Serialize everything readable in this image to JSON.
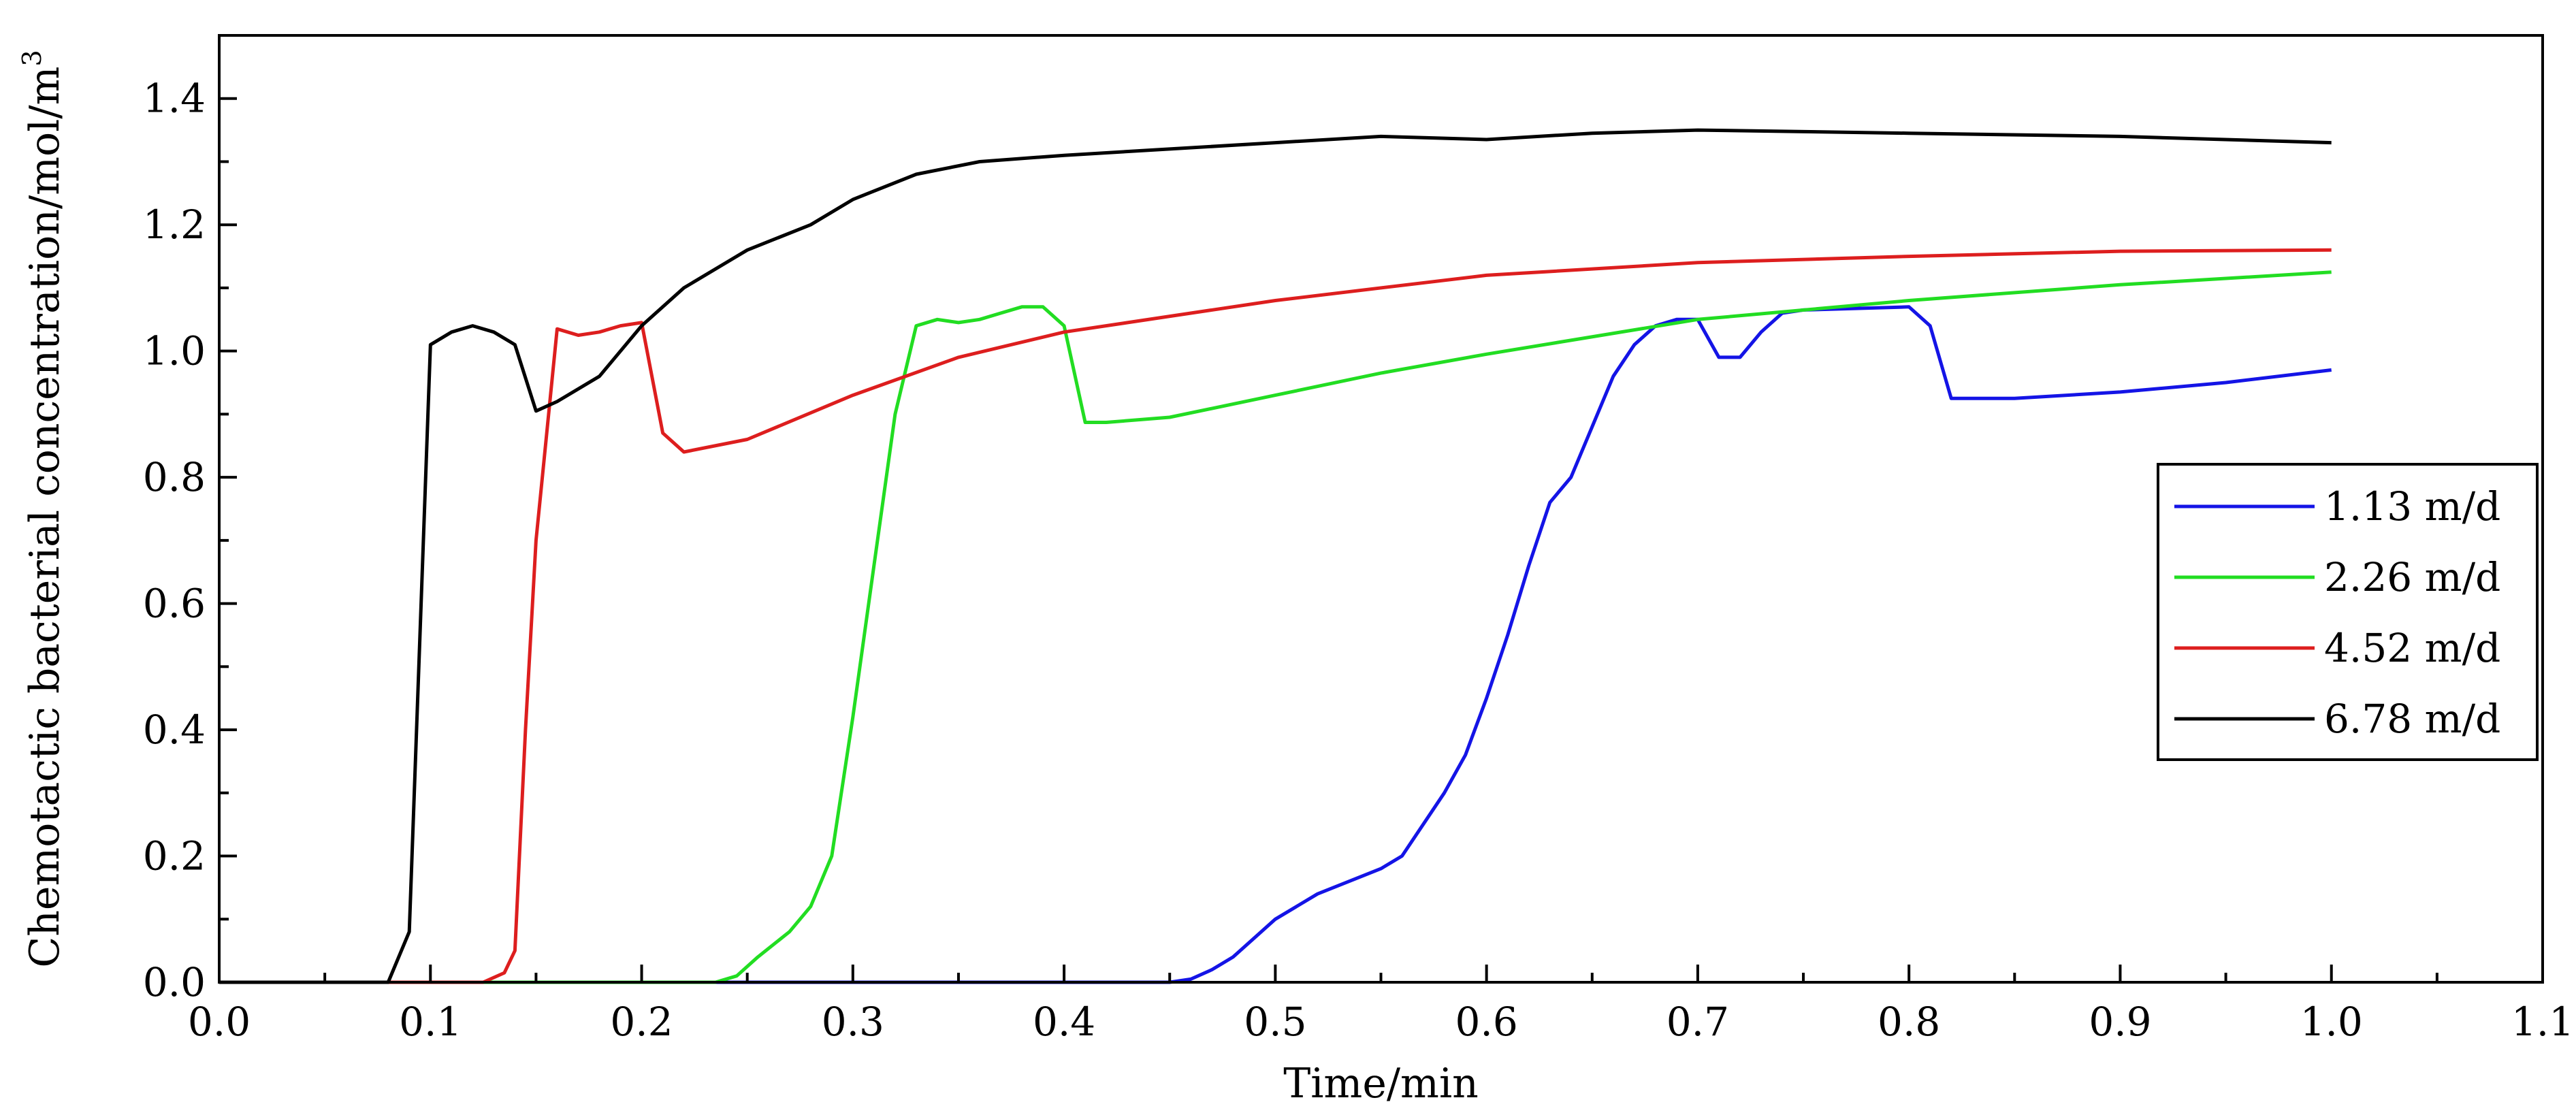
{
  "chart_data": {
    "type": "line",
    "title": "",
    "xlabel": "Time/min",
    "ylabel": "Chemotactic bacterial concentration/mol/m",
    "ylabel_superscript": "3",
    "xlim": [
      0,
      1.1
    ],
    "ylim": [
      0,
      1.5
    ],
    "xticks": [
      0,
      0.1,
      0.2,
      0.3,
      0.4,
      0.5,
      0.6,
      0.7,
      0.8,
      0.9,
      1.0,
      1.1
    ],
    "xtick_labels": [
      "0.0",
      "0.1",
      "0.2",
      "0.3",
      "0.4",
      "0.5",
      "0.6",
      "0.7",
      "0.8",
      "0.9",
      "1.0",
      "1.1"
    ],
    "yticks": [
      0,
      0.2,
      0.4,
      0.6,
      0.8,
      1.0,
      1.2,
      1.4
    ],
    "ytick_labels": [
      "0.0",
      "0.2",
      "0.4",
      "0.6",
      "0.8",
      "1.0",
      "1.2",
      "1.4"
    ],
    "grid": false,
    "legend_position": "right",
    "series": [
      {
        "name": "1.13 m/d",
        "color": "#1414e6",
        "points": [
          [
            0,
            0
          ],
          [
            0.45,
            0
          ],
          [
            0.46,
            0.005
          ],
          [
            0.47,
            0.02
          ],
          [
            0.48,
            0.04
          ],
          [
            0.49,
            0.07
          ],
          [
            0.5,
            0.1
          ],
          [
            0.52,
            0.14
          ],
          [
            0.55,
            0.18
          ],
          [
            0.56,
            0.2
          ],
          [
            0.58,
            0.3
          ],
          [
            0.59,
            0.36
          ],
          [
            0.6,
            0.45
          ],
          [
            0.61,
            0.55
          ],
          [
            0.62,
            0.66
          ],
          [
            0.63,
            0.76
          ],
          [
            0.64,
            0.8
          ],
          [
            0.65,
            0.88
          ],
          [
            0.66,
            0.96
          ],
          [
            0.67,
            1.01
          ],
          [
            0.68,
            1.04
          ],
          [
            0.69,
            1.05
          ],
          [
            0.7,
            1.05
          ],
          [
            0.71,
            0.99
          ],
          [
            0.72,
            0.99
          ],
          [
            0.73,
            1.03
          ],
          [
            0.74,
            1.06
          ],
          [
            0.75,
            1.065
          ],
          [
            0.8,
            1.07
          ],
          [
            0.81,
            1.04
          ],
          [
            0.82,
            0.925
          ],
          [
            0.85,
            0.925
          ],
          [
            0.9,
            0.935
          ],
          [
            0.95,
            0.95
          ],
          [
            1.0,
            0.97
          ]
        ]
      },
      {
        "name": "2.26 m/d",
        "color": "#22dd22",
        "points": [
          [
            0,
            0
          ],
          [
            0.235,
            0
          ],
          [
            0.245,
            0.01
          ],
          [
            0.255,
            0.04
          ],
          [
            0.27,
            0.08
          ],
          [
            0.28,
            0.12
          ],
          [
            0.29,
            0.2
          ],
          [
            0.3,
            0.42
          ],
          [
            0.31,
            0.66
          ],
          [
            0.32,
            0.9
          ],
          [
            0.33,
            1.04
          ],
          [
            0.34,
            1.05
          ],
          [
            0.35,
            1.045
          ],
          [
            0.36,
            1.05
          ],
          [
            0.37,
            1.06
          ],
          [
            0.38,
            1.07
          ],
          [
            0.39,
            1.07
          ],
          [
            0.4,
            1.04
          ],
          [
            0.41,
            0.887
          ],
          [
            0.42,
            0.887
          ],
          [
            0.45,
            0.895
          ],
          [
            0.5,
            0.93
          ],
          [
            0.55,
            0.965
          ],
          [
            0.6,
            0.995
          ],
          [
            0.7,
            1.05
          ],
          [
            0.8,
            1.08
          ],
          [
            0.9,
            1.105
          ],
          [
            1.0,
            1.125
          ]
        ]
      },
      {
        "name": "4.52 m/d",
        "color": "#dd1e1e",
        "points": [
          [
            0,
            0
          ],
          [
            0.125,
            0
          ],
          [
            0.135,
            0.015
          ],
          [
            0.14,
            0.05
          ],
          [
            0.145,
            0.4
          ],
          [
            0.15,
            0.7
          ],
          [
            0.16,
            1.035
          ],
          [
            0.17,
            1.025
          ],
          [
            0.18,
            1.03
          ],
          [
            0.19,
            1.04
          ],
          [
            0.2,
            1.045
          ],
          [
            0.21,
            0.87
          ],
          [
            0.22,
            0.84
          ],
          [
            0.25,
            0.86
          ],
          [
            0.3,
            0.93
          ],
          [
            0.35,
            0.99
          ],
          [
            0.4,
            1.03
          ],
          [
            0.5,
            1.08
          ],
          [
            0.6,
            1.12
          ],
          [
            0.7,
            1.14
          ],
          [
            0.8,
            1.15
          ],
          [
            0.9,
            1.158
          ],
          [
            1.0,
            1.16
          ]
        ]
      },
      {
        "name": "6.78 m/d",
        "color": "#000000",
        "points": [
          [
            0,
            0
          ],
          [
            0.08,
            0
          ],
          [
            0.09,
            0.08
          ],
          [
            0.1,
            1.01
          ],
          [
            0.11,
            1.03
          ],
          [
            0.12,
            1.04
          ],
          [
            0.13,
            1.03
          ],
          [
            0.14,
            1.01
          ],
          [
            0.15,
            0.905
          ],
          [
            0.16,
            0.92
          ],
          [
            0.18,
            0.96
          ],
          [
            0.2,
            1.04
          ],
          [
            0.22,
            1.1
          ],
          [
            0.25,
            1.16
          ],
          [
            0.28,
            1.2
          ],
          [
            0.3,
            1.24
          ],
          [
            0.33,
            1.28
          ],
          [
            0.36,
            1.3
          ],
          [
            0.4,
            1.31
          ],
          [
            0.45,
            1.32
          ],
          [
            0.5,
            1.33
          ],
          [
            0.55,
            1.34
          ],
          [
            0.6,
            1.335
          ],
          [
            0.65,
            1.345
          ],
          [
            0.7,
            1.35
          ],
          [
            0.8,
            1.345
          ],
          [
            0.9,
            1.34
          ],
          [
            1.0,
            1.33
          ]
        ]
      }
    ]
  }
}
